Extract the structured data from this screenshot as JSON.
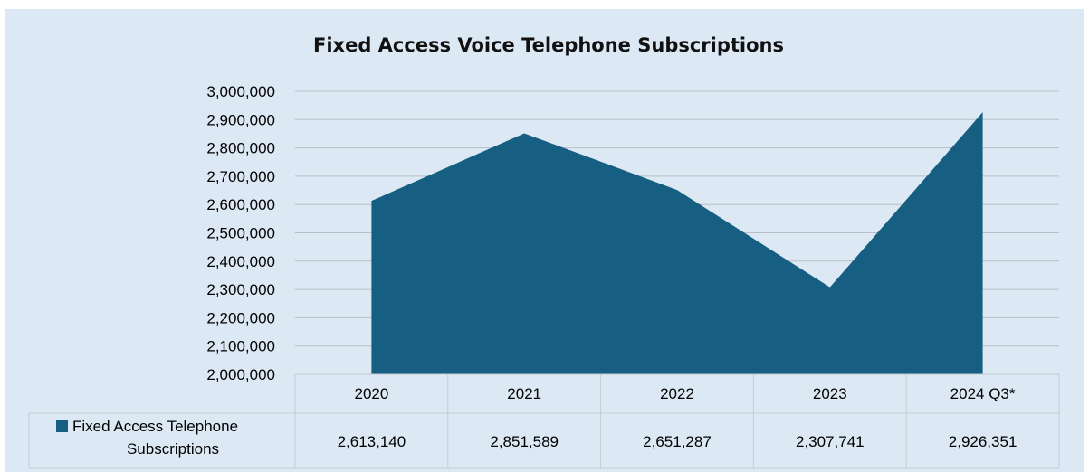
{
  "chart_data": {
    "type": "area",
    "title": "Fixed Access Voice Telephone Subscriptions",
    "categories": [
      "2020",
      "2021",
      "2022",
      "2023",
      "2024 Q3*"
    ],
    "series": [
      {
        "name": "Fixed Access Telephone Subscriptions",
        "values": [
          2613140,
          2851589,
          2651287,
          2307741,
          2926351
        ],
        "value_labels": [
          "2,613,140",
          "2,851,589",
          "2,651,287",
          "2,307,741",
          "2,926,351"
        ],
        "color": "#175f82"
      }
    ],
    "ylim": [
      2000000,
      3000000
    ],
    "yticks": [
      2000000,
      2100000,
      2200000,
      2300000,
      2400000,
      2500000,
      2600000,
      2700000,
      2800000,
      2900000,
      3000000
    ],
    "ytick_labels": [
      "2,000,000",
      "2,100,000",
      "2,200,000",
      "2,300,000",
      "2,400,000",
      "2,500,000",
      "2,600,000",
      "2,700,000",
      "2,800,000",
      "2,900,000",
      "3,000,000"
    ],
    "legend_label_lines": [
      "Fixed Access Telephone",
      "Subscriptions"
    ],
    "grid": true,
    "legend": "data-table",
    "colors": {
      "background": "#dce9f5",
      "gridline": "#b8bfc6",
      "table_border": "#c3cbd3"
    }
  }
}
